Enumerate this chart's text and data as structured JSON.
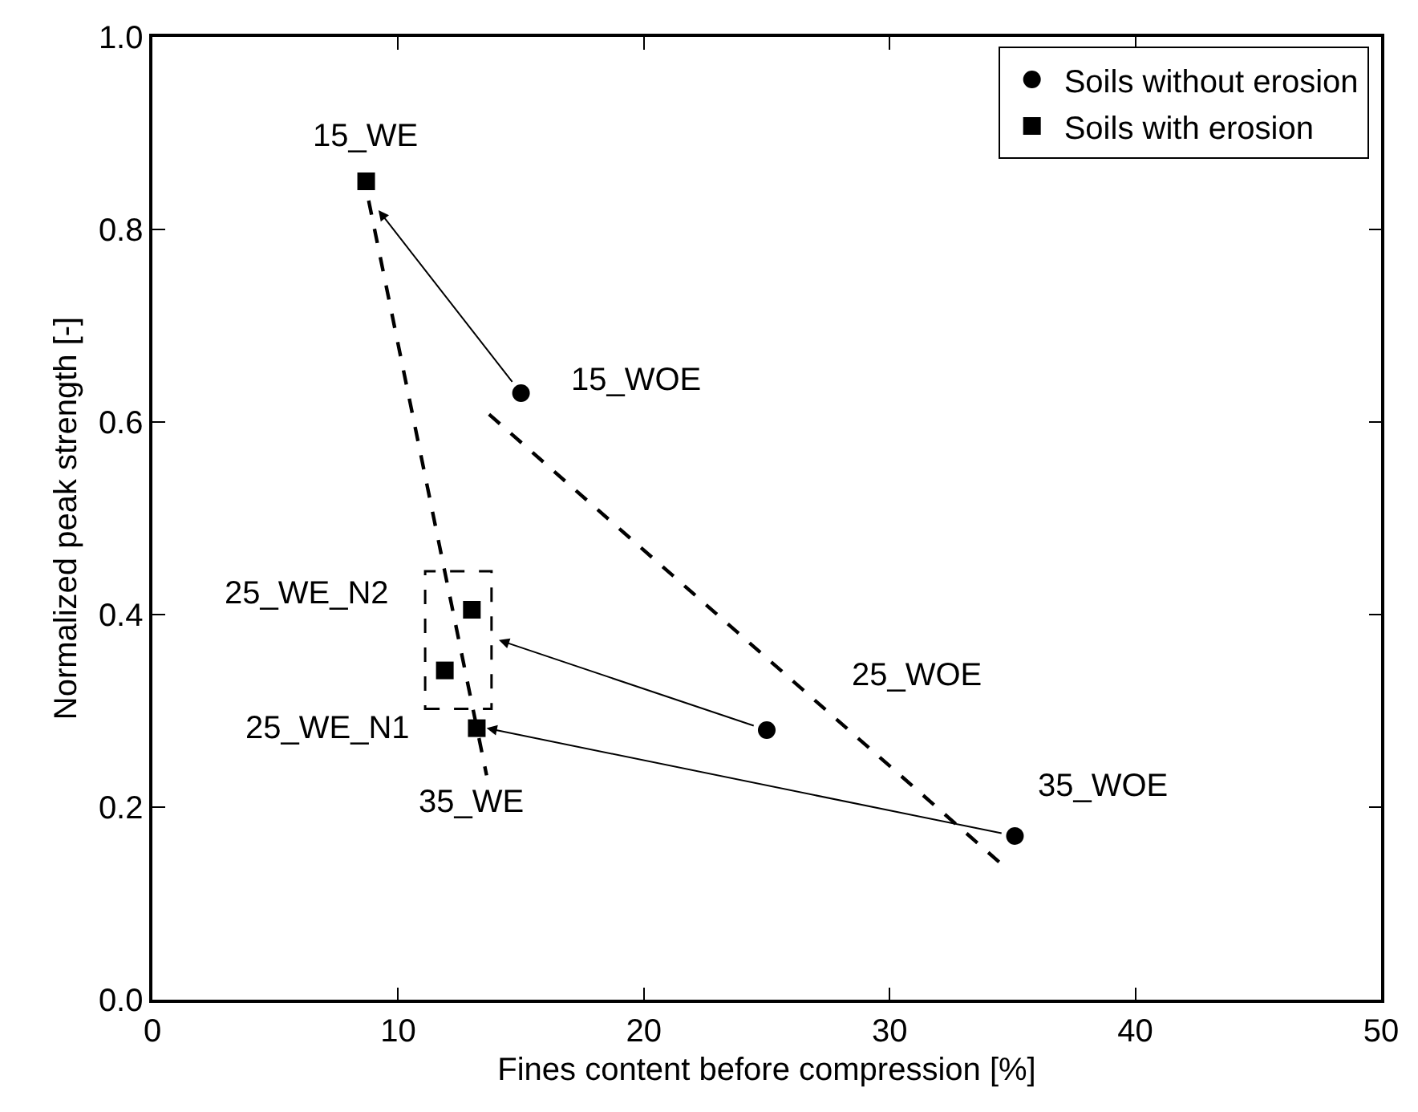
{
  "chart_data": {
    "type": "scatter",
    "xlabel": "Fines content before compression [%]",
    "ylabel": "Normalized peak strength [-]",
    "xlim": [
      0,
      50
    ],
    "xticks": [
      0,
      10,
      20,
      30,
      40,
      50
    ],
    "ylim": [
      0,
      1
    ],
    "yticks": [
      {
        "value": 0,
        "label": "0.0"
      },
      {
        "value": 0.2,
        "label": "0.2"
      },
      {
        "value": 0.4,
        "label": "0.4"
      },
      {
        "value": 0.6,
        "label": "0.6"
      },
      {
        "value": 0.8,
        "label": "0.8"
      },
      {
        "value": 1,
        "label": "1.0"
      }
    ],
    "legend": "top right",
    "series": [
      {
        "name": "Soils without erosion",
        "color": "#000000",
        "marker": "circle",
        "x": [
          15,
          25,
          35.1
        ],
        "values": [
          0.63,
          0.28,
          0.17
        ]
      },
      {
        "name": "Soils with erosion",
        "color": "#000000",
        "marker": "square",
        "x": [
          8.7,
          13.0,
          11.9,
          13.2
        ],
        "values": [
          0.85,
          0.405,
          0.342,
          0.282
        ]
      },
      {
        "type": "line",
        "color": "#000000",
        "line_style": "dashed",
        "marker": "none",
        "x": [
          8.8,
          13.6
        ],
        "values": [
          0.83,
          0.233
        ]
      },
      {
        "type": "line",
        "color": "#000000",
        "line_style": "dashed",
        "marker": "none",
        "x": [
          13.7,
          34.5
        ],
        "values": [
          0.608,
          0.142
        ]
      }
    ],
    "annotations": [
      {
        "text": "15_WE",
        "x": 8.7,
        "y": 0.85
      },
      {
        "text": "15_WOE",
        "x": 15,
        "y": 0.63
      },
      {
        "text": "25_WE_N2",
        "x": 13.0,
        "y": 0.405
      },
      {
        "text": "25_WE_N1",
        "x": 11.9,
        "y": 0.342
      },
      {
        "text": "25_WOE",
        "x": 25,
        "y": 0.28
      },
      {
        "text": "35_WOE",
        "x": 35.1,
        "y": 0.17
      },
      {
        "text": "35_WE",
        "x": 13.2,
        "y": 0.282
      }
    ]
  }
}
